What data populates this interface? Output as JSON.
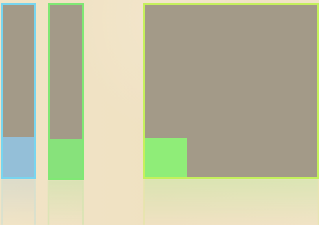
{
  "colors": {
    "background": "#f0e2c4",
    "panel_body": "#a39a88",
    "cyan_border": "#78d5ef",
    "cyan_fill": "#94bfd8",
    "green_border": "#80e874",
    "green_fill": "#87e27b",
    "lime_border": "#c5f05c",
    "lime_fill": "#8fed78"
  },
  "panels": [
    {
      "name": "left-narrow-tile",
      "border_color": "#78d5ef",
      "fill_color": "#94bfd8",
      "fill_level": 0.23
    },
    {
      "name": "middle-narrow-tile",
      "border_color": "#80e874",
      "fill_color": "#87e27b",
      "fill_level": 0.22
    },
    {
      "name": "large-tile",
      "border_color": "#c5f05c",
      "fill_color": "#8fed78",
      "fill_level": 0.22
    }
  ]
}
